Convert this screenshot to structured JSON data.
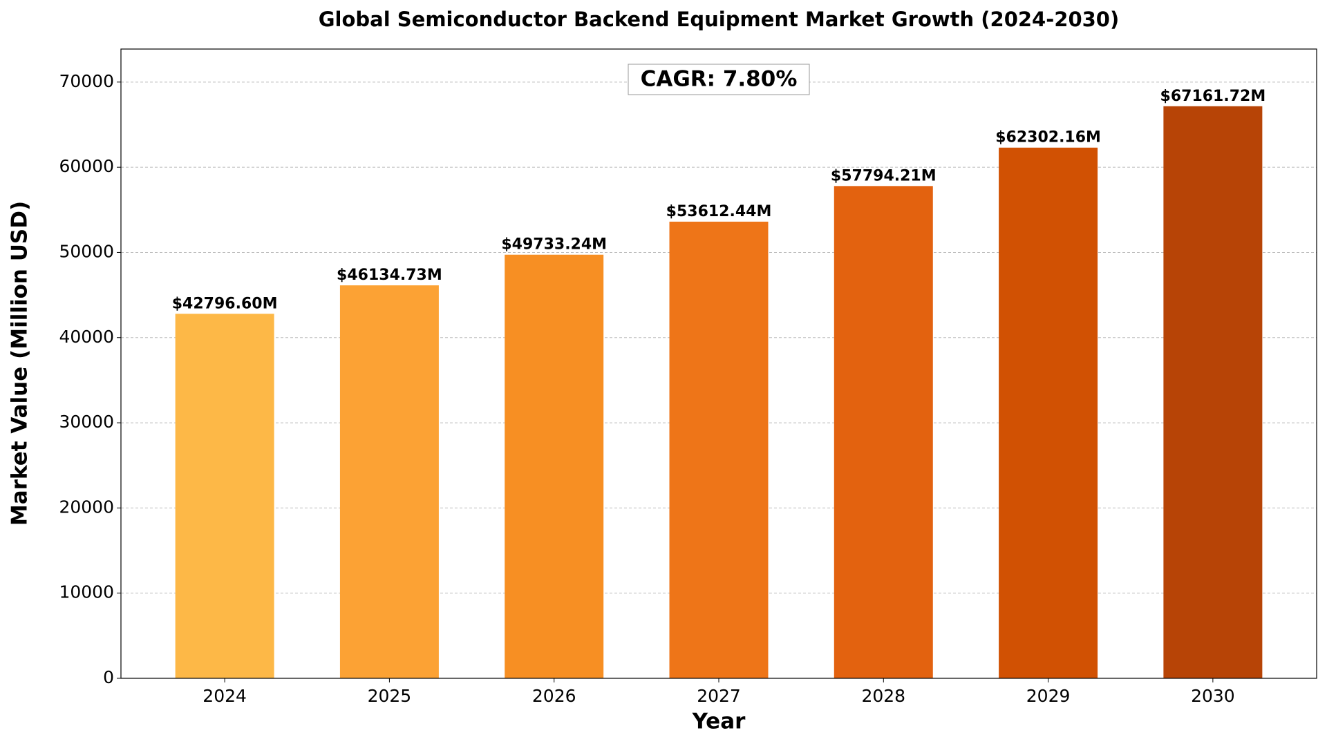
{
  "chart_data": {
    "type": "bar",
    "title": "Global Semiconductor Backend Equipment Market Growth (2024-2030)",
    "x_label": "Year",
    "y_label": "Market Value (Million USD)",
    "annotation": "CAGR: 7.80%",
    "categories": [
      "2024",
      "2025",
      "2026",
      "2027",
      "2028",
      "2029",
      "2030"
    ],
    "values": [
      42796.6,
      46134.73,
      49733.24,
      53612.44,
      57794.21,
      62302.16,
      67161.72
    ],
    "value_labels": [
      "$42796.60M",
      "$46134.73M",
      "$49733.24M",
      "$53612.44M",
      "$57794.21M",
      "$62302.16M",
      "$67161.72M"
    ],
    "colors": [
      "#fdb847",
      "#fca234",
      "#f78f23",
      "#ee7518",
      "#e3620f",
      "#d15103",
      "#b74406"
    ],
    "ylim": [
      0,
      73878
    ],
    "yticks": [
      0,
      10000,
      20000,
      30000,
      40000,
      50000,
      60000,
      70000
    ],
    "grid": true
  }
}
